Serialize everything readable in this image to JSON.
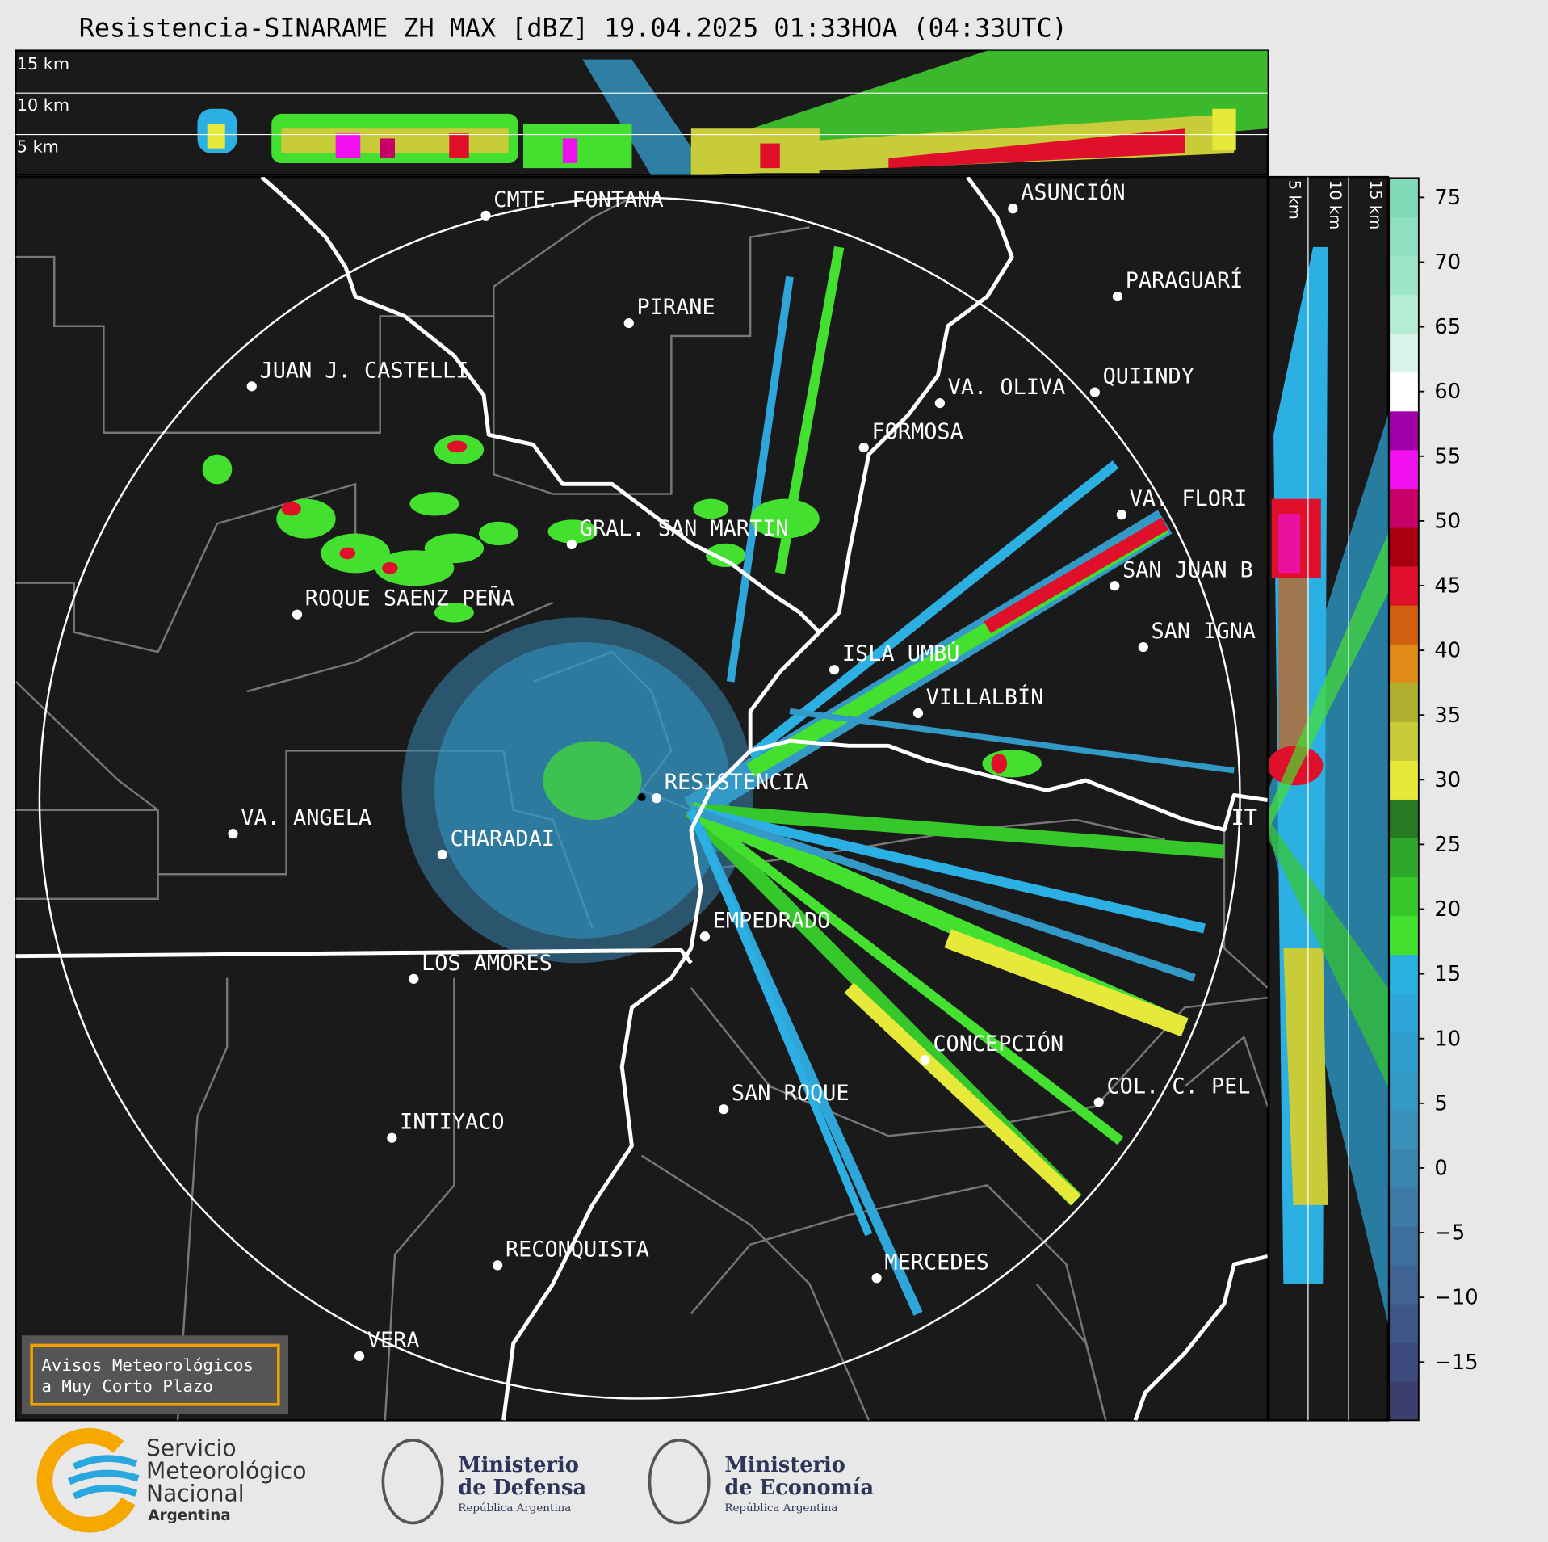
{
  "title": "Resistencia-SINARAME ZH MAX [dBZ] 19.04.2025 01:33HOA (04:33UTC)",
  "top_section": {
    "labels": [
      "15 km",
      "10 km",
      "5 km"
    ]
  },
  "right_section": {
    "labels": [
      "5 km",
      "10 km",
      "15 km"
    ]
  },
  "cities": [
    "CMTE. FONTANA",
    "ASUNCIÓN",
    "PARAGUARÍ",
    "PIRANE",
    "JUAN J. CASTELLI",
    "VA. OLIVA",
    "QUIINDY",
    "FORMOSA",
    "VA. FLORI",
    "GRAL. SAN MARTIN",
    "SAN JUAN B",
    "ROQUE SAENZ PEÑA",
    "SAN IGNA",
    "ISLA UMBÚ",
    "VILLALBÍN",
    "RESISTENCIA",
    "VA. ANGELA",
    "IT",
    "CHARADAI",
    "EMPEDRADO",
    "LOS AMORES",
    "CONCEPCIÓN",
    "COL. C. PEL",
    "SAN ROQUE",
    "INTIYACO",
    "RECONQUISTA",
    "MERCEDES",
    "VERA"
  ],
  "colorbar": {
    "lim": [
      -19.5,
      76.5
    ],
    "ticks": [
      {
        "value": -15,
        "label": "−15"
      },
      {
        "value": -10,
        "label": "−10"
      },
      {
        "value": -5,
        "label": "−5"
      },
      0,
      5,
      10,
      15,
      20,
      25,
      30,
      35,
      40,
      45,
      50,
      55,
      60,
      65,
      70,
      75
    ],
    "colors": [
      "#3b3f6e",
      "#3d4a7d",
      "#3f5689",
      "#3f6393",
      "#3e6f9c",
      "#3c7ba6",
      "#3a86b0",
      "#3891bb",
      "#3399c6",
      "#2f9fd0",
      "#2ea6da",
      "#2cb0e3",
      "#44e030",
      "#36c82a",
      "#2ea82a",
      "#257a22",
      "#e6e83a",
      "#c8cc38",
      "#b0b030",
      "#e08a18",
      "#d06010",
      "#e0102a",
      "#a80010",
      "#c8006a",
      "#f010f0",
      "#a000a8",
      "#ffffff",
      "#d8f4e8",
      "#b4ecd4",
      "#9ee6c8",
      "#8ee0c0",
      "#80dcb8"
    ]
  },
  "notice": [
    "Avisos Meteorológicos",
    "a Muy Corto Plazo"
  ],
  "logos": {
    "smn": [
      "Servicio",
      "Meteorológico",
      "Nacional",
      "Argentina"
    ],
    "defensa": [
      "Ministerio",
      "de Defensa",
      "República Argentina"
    ],
    "economia": [
      "Ministerio",
      "de Economía",
      "República Argentina"
    ]
  }
}
